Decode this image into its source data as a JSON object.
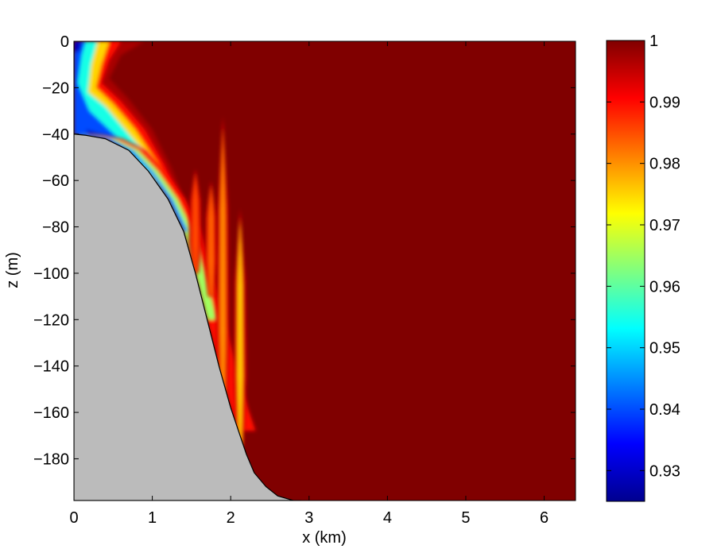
{
  "chart_data": {
    "type": "heatmap",
    "title": "",
    "xlabel": "x (km)",
    "ylabel": "z (m)",
    "xlim": [
      0,
      6.4
    ],
    "ylim": [
      -198,
      0
    ],
    "x_ticks": [
      0,
      1,
      2,
      3,
      4,
      5,
      6
    ],
    "x_tick_labels": [
      "0",
      "1",
      "2",
      "3",
      "4",
      "5",
      "6"
    ],
    "y_ticks": [
      0,
      -20,
      -40,
      -60,
      -80,
      -100,
      -120,
      -140,
      -160,
      -180
    ],
    "y_tick_labels": [
      "0",
      "−20",
      "−40",
      "−60",
      "−80",
      "−100",
      "−120",
      "−140",
      "−160",
      "−180"
    ],
    "colorbar": {
      "colormap": "jet",
      "range": [
        0.925,
        1.0
      ],
      "ticks": [
        1,
        0.99,
        0.98,
        0.97,
        0.96,
        0.95,
        0.94,
        0.93
      ],
      "tick_labels": [
        "1",
        "0.99",
        "0.98",
        "0.97",
        "0.96",
        "0.95",
        "0.94",
        "0.93"
      ]
    },
    "background_value": 1.0,
    "bathymetry": {
      "fill_color": "#bbbbbb",
      "x": [
        0,
        0.15,
        0.4,
        0.7,
        0.95,
        1.2,
        1.4,
        1.55,
        1.7,
        1.85,
        2.0,
        2.1,
        2.2,
        2.3,
        2.45,
        2.6,
        2.8,
        2.9
      ],
      "z": [
        -40,
        -40.5,
        -42,
        -47,
        -56,
        -68,
        -82,
        -100,
        -120,
        -140,
        -158,
        -168,
        -178,
        -186,
        -192,
        -196,
        -198,
        -198
      ]
    },
    "anomaly_regions": [
      {
        "name": "surface-wedge",
        "min_value": 0.925
      },
      {
        "name": "slope-boundary-layer",
        "min_value": 0.93
      },
      {
        "name": "plume-1",
        "x_center": 1.55,
        "z_top": -55,
        "z_bottom": -100,
        "min_value": 0.985
      },
      {
        "name": "plume-2",
        "x_center": 1.75,
        "z_top": -60,
        "z_bottom": -110,
        "min_value": 0.983
      },
      {
        "name": "plume-3",
        "x_center": 1.9,
        "z_top": -32,
        "z_bottom": -165,
        "min_value": 0.98
      },
      {
        "name": "plume-4",
        "x_center": 2.12,
        "z_top": -72,
        "z_bottom": -175,
        "min_value": 0.975
      }
    ]
  }
}
